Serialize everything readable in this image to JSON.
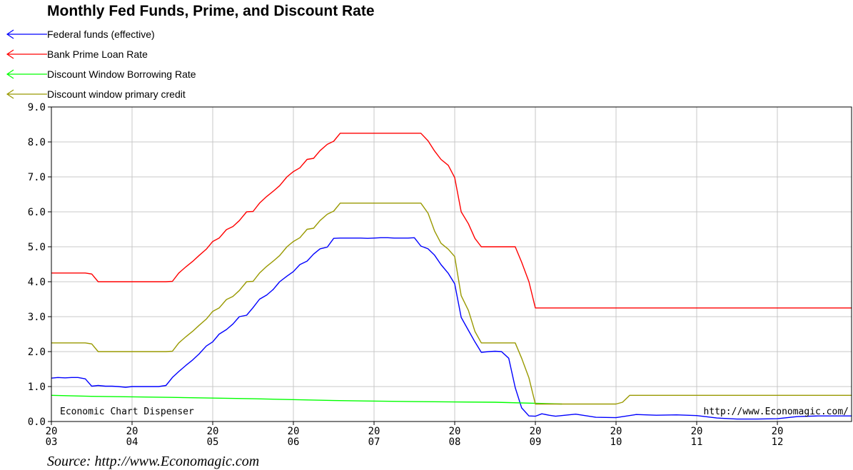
{
  "chart_data": {
    "type": "line",
    "title": "Monthly Fed Funds, Prime, and Discount Rate",
    "ylim": [
      0,
      9
    ],
    "y_ticks": [
      "0.0",
      "1.0",
      "2.0",
      "3.0",
      "4.0",
      "5.0",
      "6.0",
      "7.0",
      "8.0",
      "9.0"
    ],
    "x_ticks": [
      {
        "top": "20",
        "bottom": "03",
        "value": 2003
      },
      {
        "top": "20",
        "bottom": "04",
        "value": 2004
      },
      {
        "top": "20",
        "bottom": "05",
        "value": 2005
      },
      {
        "top": "20",
        "bottom": "06",
        "value": 2006
      },
      {
        "top": "20",
        "bottom": "07",
        "value": 2007
      },
      {
        "top": "20",
        "bottom": "08",
        "value": 2008
      },
      {
        "top": "20",
        "bottom": "09",
        "value": 2009
      },
      {
        "top": "20",
        "bottom": "10",
        "value": 2010
      },
      {
        "top": "20",
        "bottom": "11",
        "value": 2011
      },
      {
        "top": "20",
        "bottom": "12",
        "value": 2012
      }
    ],
    "xlim": [
      2003.0,
      2012.92
    ],
    "grid": true,
    "legend_position": "top-left",
    "watermark_left": "Economic Chart Dispenser",
    "watermark_right": "http://www.Economagic.com/",
    "series": [
      {
        "name": "Federal funds (effective)",
        "color": "#0000ff",
        "x": [
          2003.0,
          2003.08,
          2003.17,
          2003.25,
          2003.33,
          2003.42,
          2003.5,
          2003.58,
          2003.67,
          2003.75,
          2003.83,
          2003.92,
          2004.0,
          2004.17,
          2004.33,
          2004.42,
          2004.5,
          2004.58,
          2004.67,
          2004.75,
          2004.83,
          2004.92,
          2005.0,
          2005.08,
          2005.17,
          2005.25,
          2005.33,
          2005.42,
          2005.5,
          2005.58,
          2005.67,
          2005.75,
          2005.83,
          2005.92,
          2006.0,
          2006.08,
          2006.17,
          2006.25,
          2006.33,
          2006.42,
          2006.5,
          2006.58,
          2006.67,
          2006.75,
          2006.83,
          2006.92,
          2007.0,
          2007.08,
          2007.17,
          2007.25,
          2007.33,
          2007.42,
          2007.5,
          2007.58,
          2007.67,
          2007.75,
          2007.83,
          2007.92,
          2008.0,
          2008.08,
          2008.17,
          2008.25,
          2008.33,
          2008.42,
          2008.5,
          2008.58,
          2008.67,
          2008.75,
          2008.83,
          2008.92,
          2009.0,
          2009.08,
          2009.17,
          2009.25,
          2009.5,
          2009.75,
          2010.0,
          2010.25,
          2010.5,
          2010.75,
          2011.0,
          2011.25,
          2011.5,
          2011.75,
          2012.0,
          2012.25,
          2012.5,
          2012.75,
          2012.92
        ],
        "values": [
          1.24,
          1.26,
          1.25,
          1.26,
          1.26,
          1.22,
          1.01,
          1.03,
          1.01,
          1.01,
          1.0,
          0.98,
          1.0,
          1.0,
          1.0,
          1.03,
          1.26,
          1.43,
          1.61,
          1.76,
          1.93,
          2.16,
          2.28,
          2.5,
          2.63,
          2.79,
          3.0,
          3.04,
          3.26,
          3.5,
          3.62,
          3.78,
          4.0,
          4.16,
          4.29,
          4.49,
          4.59,
          4.79,
          4.94,
          4.99,
          5.24,
          5.25,
          5.25,
          5.25,
          5.25,
          5.24,
          5.25,
          5.26,
          5.26,
          5.25,
          5.25,
          5.25,
          5.26,
          5.02,
          4.94,
          4.76,
          4.49,
          4.24,
          3.94,
          2.98,
          2.61,
          2.28,
          1.98,
          2.0,
          2.01,
          2.0,
          1.81,
          0.97,
          0.39,
          0.16,
          0.15,
          0.22,
          0.18,
          0.15,
          0.21,
          0.12,
          0.11,
          0.2,
          0.18,
          0.19,
          0.17,
          0.1,
          0.07,
          0.07,
          0.08,
          0.14,
          0.16,
          0.16,
          0.16
        ]
      },
      {
        "name": "Bank Prime Loan Rate",
        "color": "#ff0000",
        "x": [
          2003.0,
          2003.42,
          2003.5,
          2003.58,
          2004.42,
          2004.5,
          2004.58,
          2004.67,
          2004.75,
          2004.83,
          2004.92,
          2005.0,
          2005.08,
          2005.17,
          2005.25,
          2005.33,
          2005.42,
          2005.5,
          2005.58,
          2005.67,
          2005.75,
          2005.83,
          2005.92,
          2006.0,
          2006.08,
          2006.17,
          2006.25,
          2006.33,
          2006.42,
          2006.5,
          2006.58,
          2007.58,
          2007.67,
          2007.75,
          2007.83,
          2007.92,
          2008.0,
          2008.08,
          2008.17,
          2008.25,
          2008.33,
          2008.75,
          2008.83,
          2008.92,
          2009.0,
          2012.92
        ],
        "values": [
          4.25,
          4.25,
          4.22,
          4.0,
          4.0,
          4.01,
          4.25,
          4.43,
          4.58,
          4.75,
          4.93,
          5.15,
          5.25,
          5.49,
          5.58,
          5.75,
          6.0,
          6.01,
          6.25,
          6.44,
          6.59,
          6.75,
          7.0,
          7.15,
          7.26,
          7.5,
          7.53,
          7.75,
          7.93,
          8.02,
          8.25,
          8.25,
          8.03,
          7.74,
          7.5,
          7.33,
          6.98,
          6.0,
          5.66,
          5.24,
          5.0,
          5.0,
          4.56,
          4.0,
          3.25,
          3.25
        ]
      },
      {
        "name": "Discount Window Borrowing Rate",
        "color": "#00ff00",
        "x": [
          2003.0,
          2003.5,
          2004.5,
          2005.5,
          2006.5,
          2007.5,
          2008.5,
          2009.33
        ],
        "values": [
          0.75,
          0.72,
          0.69,
          0.65,
          0.6,
          0.57,
          0.55,
          0.5
        ]
      },
      {
        "name": "Discount window primary credit",
        "color": "#999900",
        "x": [
          2003.0,
          2003.42,
          2003.5,
          2003.58,
          2004.42,
          2004.5,
          2004.58,
          2004.67,
          2004.75,
          2004.83,
          2004.92,
          2005.0,
          2005.08,
          2005.17,
          2005.25,
          2005.33,
          2005.42,
          2005.5,
          2005.58,
          2005.67,
          2005.75,
          2005.83,
          2005.92,
          2006.0,
          2006.08,
          2006.17,
          2006.25,
          2006.33,
          2006.42,
          2006.5,
          2006.58,
          2007.58,
          2007.67,
          2007.75,
          2007.83,
          2007.92,
          2008.0,
          2008.08,
          2008.17,
          2008.25,
          2008.33,
          2008.75,
          2008.83,
          2008.92,
          2009.0,
          2009.08,
          2010.0,
          2010.08,
          2010.17,
          2012.92
        ],
        "values": [
          2.25,
          2.25,
          2.22,
          2.0,
          2.0,
          2.01,
          2.25,
          2.43,
          2.58,
          2.75,
          2.93,
          3.15,
          3.25,
          3.49,
          3.58,
          3.75,
          4.0,
          4.01,
          4.25,
          4.44,
          4.59,
          4.75,
          5.0,
          5.15,
          5.26,
          5.5,
          5.53,
          5.75,
          5.93,
          6.02,
          6.25,
          6.25,
          5.96,
          5.45,
          5.1,
          4.93,
          4.72,
          3.6,
          3.18,
          2.58,
          2.25,
          2.25,
          1.81,
          1.25,
          0.5,
          0.5,
          0.5,
          0.55,
          0.75,
          0.75
        ]
      }
    ]
  },
  "source": "Source: http://www.Economagic.com"
}
